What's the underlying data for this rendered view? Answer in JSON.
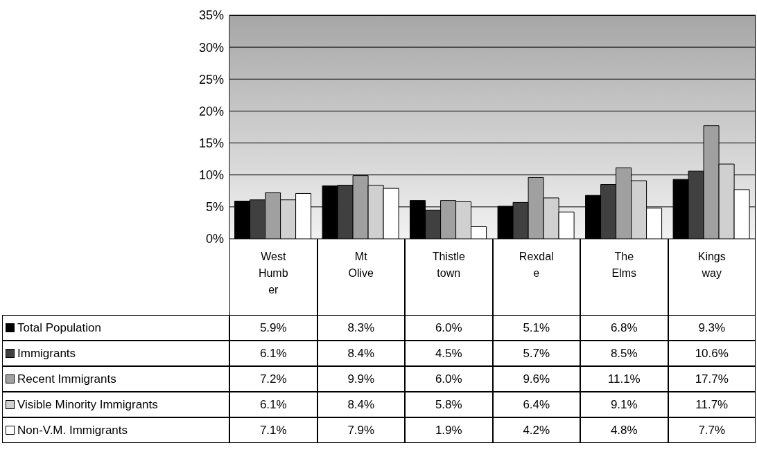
{
  "chart_data": {
    "type": "bar",
    "categories": [
      "West Humber",
      "Mt Olive",
      "Thistletown",
      "Rexdale",
      "The Elms",
      "Kingsway"
    ],
    "series": [
      {
        "name": "Total Population",
        "color": "#000000",
        "values": [
          5.9,
          8.3,
          6.0,
          5.1,
          6.8,
          9.3
        ],
        "value_labels": [
          "5.9%",
          "8.3%",
          "6.0%",
          "5.1%",
          "6.8%",
          "9.3%"
        ]
      },
      {
        "name": "Immigrants",
        "color": "#404040",
        "values": [
          6.1,
          8.4,
          4.5,
          5.7,
          8.5,
          10.6
        ],
        "value_labels": [
          "6.1%",
          "8.4%",
          "4.5%",
          "5.7%",
          "8.5%",
          "10.6%"
        ]
      },
      {
        "name": "Recent Immigrants",
        "color": "#a0a0a0",
        "values": [
          7.2,
          9.9,
          6.0,
          9.6,
          11.1,
          17.7
        ],
        "value_labels": [
          "7.2%",
          "9.9%",
          "6.0%",
          "9.6%",
          "11.1%",
          "17.7%"
        ]
      },
      {
        "name": "Visible Minority Immigrants",
        "color": "#d0d0d0",
        "values": [
          6.1,
          8.4,
          5.8,
          6.4,
          9.1,
          11.7
        ],
        "value_labels": [
          "6.1%",
          "8.4%",
          "5.8%",
          "6.4%",
          "9.1%",
          "11.7%"
        ]
      },
      {
        "name": "Non-V.M. Immigrants",
        "color": "#ffffff",
        "values": [
          7.1,
          7.9,
          1.9,
          4.2,
          4.8,
          7.7
        ],
        "value_labels": [
          "7.1%",
          "7.9%",
          "1.9%",
          "4.2%",
          "4.8%",
          "7.7%"
        ]
      }
    ],
    "ylim": [
      0,
      35
    ],
    "yticks": [
      {
        "value": 0,
        "label": "0%"
      },
      {
        "value": 5,
        "label": "5%"
      },
      {
        "value": 10,
        "label": "10%"
      },
      {
        "value": 15,
        "label": "15%"
      },
      {
        "value": 20,
        "label": "20%"
      },
      {
        "value": 25,
        "label": "25%"
      },
      {
        "value": 30,
        "label": "30%"
      },
      {
        "value": 35,
        "label": "35%"
      }
    ],
    "grid": "y",
    "legend": "bottom"
  }
}
